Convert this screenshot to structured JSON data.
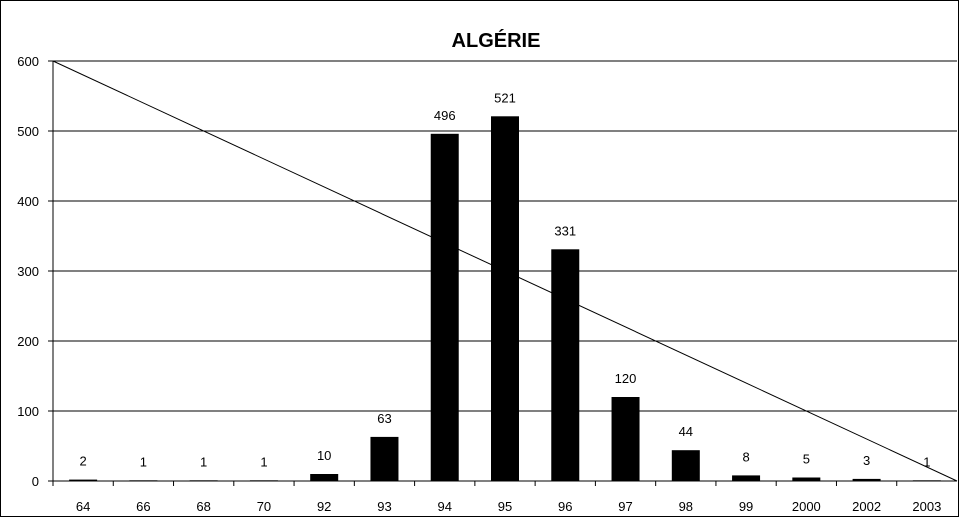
{
  "chart_data": {
    "type": "bar",
    "title": "ALGÉRIE",
    "xlabel": "",
    "ylabel": "",
    "categories": [
      "64",
      "66",
      "68",
      "70",
      "92",
      "93",
      "94",
      "95",
      "96",
      "97",
      "98",
      "99",
      "2000",
      "2002",
      "2003"
    ],
    "series": [
      {
        "values": [
          2,
          1,
          1,
          1,
          10,
          63,
          496,
          521,
          331,
          120,
          44,
          8,
          5,
          3,
          1
        ]
      }
    ],
    "ylim": [
      0,
      600
    ],
    "yticks": [
      0,
      100,
      200,
      300,
      400,
      500,
      600
    ],
    "grid": true,
    "legend": "none",
    "trendline": {
      "from": 600,
      "to": 0
    },
    "bar_color": "#000000"
  }
}
